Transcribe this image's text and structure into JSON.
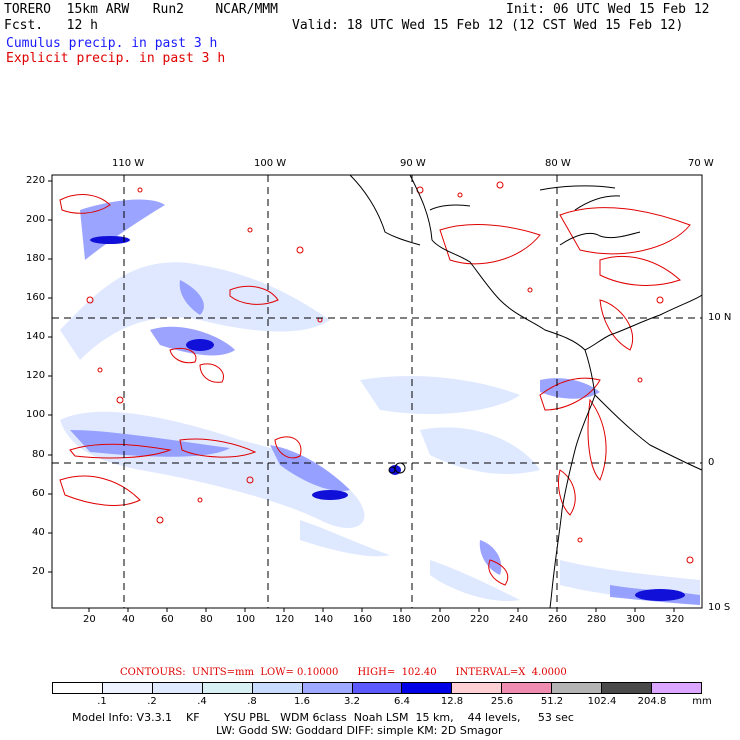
{
  "header": {
    "model_line": "TORERO  15km ARW   Run2    NCAR/MMM",
    "fcst_line": "Fcst.   12 h",
    "init_line": "Init: 06 UTC Wed 15 Feb 12",
    "valid_line": "Valid: 18 UTC Wed 15 Feb 12 (12 CST Wed 15 Feb 12)",
    "cumulus_label": "Cumulus precip. in past 3 h",
    "explicit_label": "Explicit precip. in past 3 h"
  },
  "map": {
    "top_lon_labels": [
      "110 W",
      "100 W",
      "90 W",
      "80 W",
      "70 W"
    ],
    "right_lat_labels": [
      "10 N",
      "0",
      "10 S"
    ],
    "left_y_ticks": [
      "220",
      "200",
      "180",
      "160",
      "140",
      "120",
      "100",
      "80",
      "60",
      "40",
      "20"
    ],
    "bottom_x_ticks": [
      "20",
      "40",
      "60",
      "80",
      "100",
      "120",
      "140",
      "160",
      "180",
      "200",
      "220",
      "240",
      "260",
      "280",
      "300",
      "320"
    ],
    "colors": {
      "cumulus": "#1a1aff",
      "explicit": "#e00000",
      "coast": "#000000",
      "grid": "#000000"
    }
  },
  "contours_note": "CONTOURS:  UNITS=mm  LOW= 0.10000      HIGH=  102.40      INTERVAL=X  4.0000",
  "legend": {
    "labels": [
      ".1",
      ".2",
      ".4",
      ".8",
      "1.6",
      "3.2",
      "6.4",
      "12.8",
      "25.6",
      "51.2",
      "102.4",
      "204.8",
      "mm"
    ],
    "colors": [
      "#ffffff",
      "#eef4ff",
      "#dfeaff",
      "#d8f0f4",
      "#c8dcff",
      "#9eaaff",
      "#5a5aff",
      "#0000e6",
      "#ffd0d4",
      "#f08cb0",
      "#b4b4b4",
      "#4a4a4a",
      "#dca8ff"
    ]
  },
  "footer": {
    "line1": "Model Info: V3.3.1    KF       YSU PBL   WDM 6class  Noah LSM  15 km,    44 levels,     53 sec",
    "line2": "LW: Godd SW: Goddard DIFF: simple KM: 2D Smagor"
  }
}
